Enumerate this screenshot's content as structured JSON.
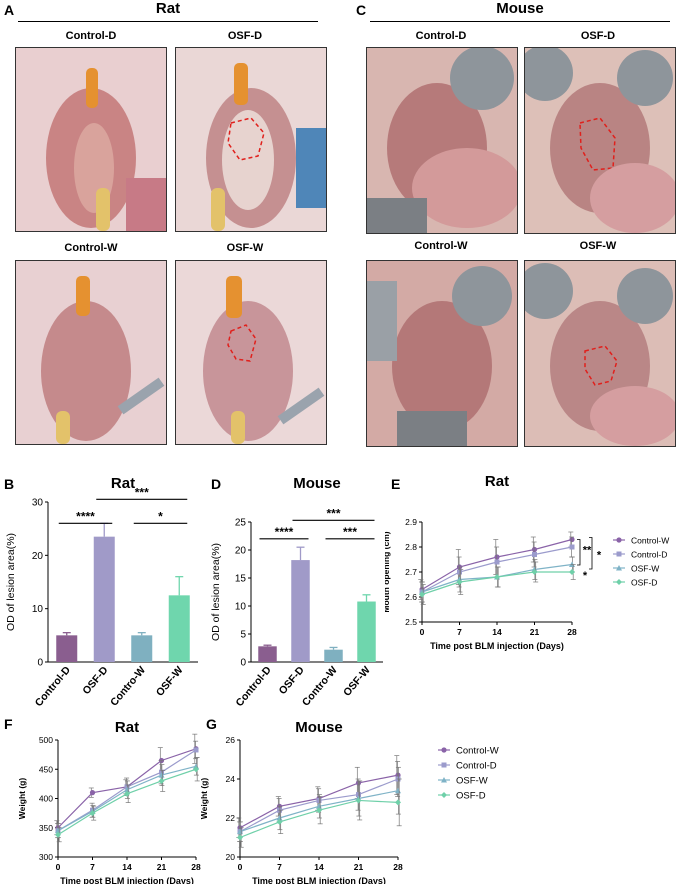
{
  "figure": {
    "panel_letters": [
      "A",
      "B",
      "C",
      "D",
      "E",
      "F",
      "G"
    ],
    "rat_header": "Rat",
    "mouse_header": "Mouse",
    "image_labels": [
      "Control-D",
      "OSF-D",
      "Control-W",
      "OSF-W"
    ]
  },
  "colors": {
    "control_w": "#8a63a8",
    "control_d": "#9b9bcc",
    "osf_w": "#7fb3c7",
    "osf_d": "#6fd0a9",
    "bar_control_d": "#8a5e8f",
    "bar_osf_d": "#a09ac8",
    "bar_contro_w": "#7fb0c0",
    "bar_osf_w": "#6fd6ad"
  },
  "chart_data": [
    {
      "id": "B",
      "type": "bar",
      "title": "Rat",
      "ylabel": "OD of  lesion area(%)",
      "categories": [
        "Control-D",
        "OSF-D",
        "Contro-W",
        "OSF-W"
      ],
      "values": [
        5.0,
        23.5,
        5.0,
        12.5
      ],
      "errors": [
        0.5,
        2.5,
        0.5,
        3.5
      ],
      "ylim": [
        0,
        30
      ],
      "yticks": [
        "0",
        "10",
        "20",
        "30"
      ],
      "significance": [
        {
          "label": "****",
          "from": 0,
          "to": 1,
          "level": 26
        },
        {
          "label": "*",
          "from": 2,
          "to": 3,
          "level": 26
        },
        {
          "label": "***",
          "from": 1,
          "to": 3,
          "level": 30.5
        }
      ]
    },
    {
      "id": "D",
      "type": "bar",
      "title": "Mouse",
      "ylabel": "OD of  lesion area(%)",
      "categories": [
        "Control-D",
        "OSF-D",
        "Contro-W",
        "OSF-W"
      ],
      "values": [
        2.8,
        18.2,
        2.2,
        10.8
      ],
      "errors": [
        0.2,
        2.3,
        0.4,
        1.2
      ],
      "ylim": [
        0,
        25
      ],
      "yticks": [
        "0",
        "5",
        "10",
        "15",
        "20",
        "25"
      ],
      "significance": [
        {
          "label": "****",
          "from": 0,
          "to": 1,
          "level": 22
        },
        {
          "label": "***",
          "from": 2,
          "to": 3,
          "level": 22
        },
        {
          "label": "***",
          "from": 1,
          "to": 3,
          "level": 25.3
        }
      ]
    },
    {
      "id": "E",
      "type": "line",
      "title": "Rat",
      "xlabel": "Time post BLM injection (Days)",
      "ylabel": "Mouth opening (cm)",
      "x": [
        0,
        7,
        14,
        21,
        28
      ],
      "xticks": [
        "0",
        "7",
        "14",
        "21",
        "28"
      ],
      "ylim": [
        2.5,
        2.9
      ],
      "yticks": [
        "2.5",
        "2.6",
        "2.7",
        "2.8",
        "2.9"
      ],
      "series": [
        {
          "name": "Control-W",
          "values": [
            2.63,
            2.72,
            2.76,
            2.79,
            2.83
          ],
          "err": [
            0.04,
            0.07,
            0.07,
            0.05,
            0.03
          ]
        },
        {
          "name": "Control-D",
          "values": [
            2.62,
            2.7,
            2.74,
            2.77,
            2.8
          ],
          "err": [
            0.04,
            0.06,
            0.06,
            0.05,
            0.04
          ]
        },
        {
          "name": "OSF-W",
          "values": [
            2.62,
            2.67,
            2.68,
            2.71,
            2.73
          ],
          "err": [
            0.04,
            0.05,
            0.04,
            0.04,
            0.03
          ]
        },
        {
          "name": "OSF-D",
          "values": [
            2.61,
            2.66,
            2.68,
            2.7,
            2.7
          ],
          "err": [
            0.04,
            0.05,
            0.04,
            0.04,
            0.03
          ]
        }
      ],
      "significance": [
        "**",
        "*",
        "*"
      ]
    },
    {
      "id": "F",
      "type": "line",
      "title": "Rat",
      "xlabel": "Time post BLM injection (Days)",
      "ylabel": "Weight (g)",
      "x": [
        0,
        7,
        14,
        21,
        28
      ],
      "xticks": [
        "0",
        "7",
        "14",
        "21",
        "28"
      ],
      "ylim": [
        300,
        500
      ],
      "yticks": [
        "300",
        "350",
        "400",
        "450",
        "500"
      ],
      "series": [
        {
          "name": "Control-W",
          "values": [
            350,
            410,
            420,
            465,
            485
          ],
          "err": [
            12,
            8,
            12,
            22,
            25
          ]
        },
        {
          "name": "Control-D",
          "values": [
            345,
            380,
            420,
            445,
            483
          ],
          "err": [
            12,
            12,
            15,
            20,
            15
          ]
        },
        {
          "name": "OSF-W",
          "values": [
            345,
            378,
            415,
            440,
            455
          ],
          "err": [
            12,
            10,
            15,
            18,
            15
          ]
        },
        {
          "name": "OSF-D",
          "values": [
            338,
            375,
            408,
            430,
            450
          ],
          "err": [
            12,
            12,
            15,
            18,
            20
          ]
        }
      ]
    },
    {
      "id": "G",
      "type": "line",
      "title": "Mouse",
      "xlabel": "Time post BLM injection (Days)",
      "ylabel": "Weight (g)",
      "x": [
        0,
        7,
        14,
        21,
        28
      ],
      "xticks": [
        "0",
        "7",
        "14",
        "21",
        "28"
      ],
      "ylim": [
        20,
        26
      ],
      "yticks": [
        "20",
        "22",
        "24",
        "26"
      ],
      "series": [
        {
          "name": "Control-W",
          "values": [
            21.5,
            22.6,
            23.0,
            23.8,
            24.2
          ],
          "err": [
            0.5,
            0.5,
            0.6,
            0.8,
            1.0
          ]
        },
        {
          "name": "Control-D",
          "values": [
            21.3,
            22.4,
            22.9,
            23.2,
            24.0
          ],
          "err": [
            0.5,
            0.6,
            0.6,
            0.8,
            0.9
          ]
        },
        {
          "name": "OSF-W",
          "values": [
            21.3,
            22.0,
            22.6,
            23.0,
            23.4
          ],
          "err": [
            0.5,
            0.6,
            0.6,
            0.9,
            1.2
          ]
        },
        {
          "name": "OSF-D",
          "values": [
            21.0,
            21.8,
            22.4,
            22.9,
            22.8
          ],
          "err": [
            0.5,
            0.6,
            0.7,
            1.0,
            1.2
          ]
        }
      ]
    }
  ]
}
